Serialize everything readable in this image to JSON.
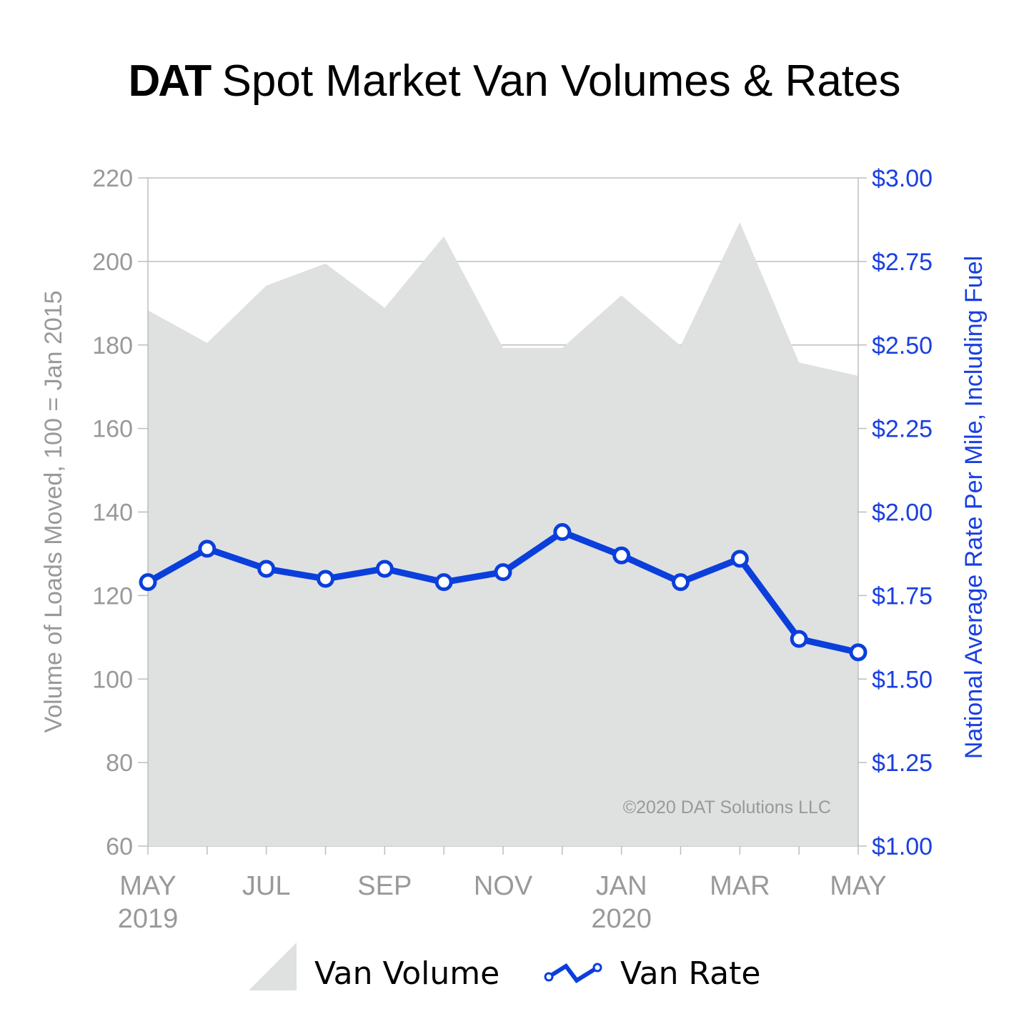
{
  "title": {
    "brand": "DAT",
    "text": "Spot Market Van Volumes & Rates"
  },
  "copyright": "©2020 DAT Solutions LLC",
  "colors": {
    "volume_fill": "#dfe0e0",
    "rate_line": "#0a3fdc",
    "right_axis": "#1a3fe0",
    "left_axis": "#999999"
  },
  "chart_data": {
    "type": "area+line",
    "ylabel": "Volume of Loads Moved, 100 = Jan 2015",
    "y2label": "National Average Rate Per Mile, Including Fuel",
    "ylim": [
      60,
      220
    ],
    "y2lim": [
      1.0,
      3.0
    ],
    "yticks": [
      "60",
      "80",
      "100",
      "120",
      "140",
      "160",
      "180",
      "200",
      "220"
    ],
    "y2ticks": [
      "$1.00",
      "$1.25",
      "$1.50",
      "$1.75",
      "$2.00",
      "$2.25",
      "$2.50",
      "$2.75",
      "$3.00"
    ],
    "grid": true,
    "categories": [
      "May 2019",
      "Jun 2019",
      "Jul 2019",
      "Aug 2019",
      "Sep 2019",
      "Oct 2019",
      "Nov 2019",
      "Dec 2019",
      "Jan 2020",
      "Feb 2020",
      "Mar 2020",
      "Apr 2020",
      "May 2020"
    ],
    "xtick_labels": [
      {
        "index": 0,
        "line1": "MAY",
        "line2": "2019"
      },
      {
        "index": 2,
        "line1": "JUL",
        "line2": ""
      },
      {
        "index": 4,
        "line1": "SEP",
        "line2": ""
      },
      {
        "index": 6,
        "line1": "NOV",
        "line2": ""
      },
      {
        "index": 8,
        "line1": "JAN",
        "line2": "2020"
      },
      {
        "index": 10,
        "line1": "MAR",
        "line2": ""
      },
      {
        "index": 12,
        "line1": "MAY",
        "line2": ""
      }
    ],
    "series": [
      {
        "name": "Van Volume",
        "type": "area",
        "axis": "left",
        "values": [
          188.3,
          180.5,
          194.2,
          199.5,
          188.9,
          206.0,
          179.3,
          179.3,
          191.9,
          179.8,
          209.4,
          175.8,
          172.6
        ]
      },
      {
        "name": "Van Rate",
        "type": "line",
        "axis": "right",
        "values": [
          1.79,
          1.89,
          1.83,
          1.8,
          1.83,
          1.79,
          1.82,
          1.94,
          1.87,
          1.79,
          1.86,
          1.62,
          1.58
        ]
      }
    ],
    "legend": "bottom"
  }
}
